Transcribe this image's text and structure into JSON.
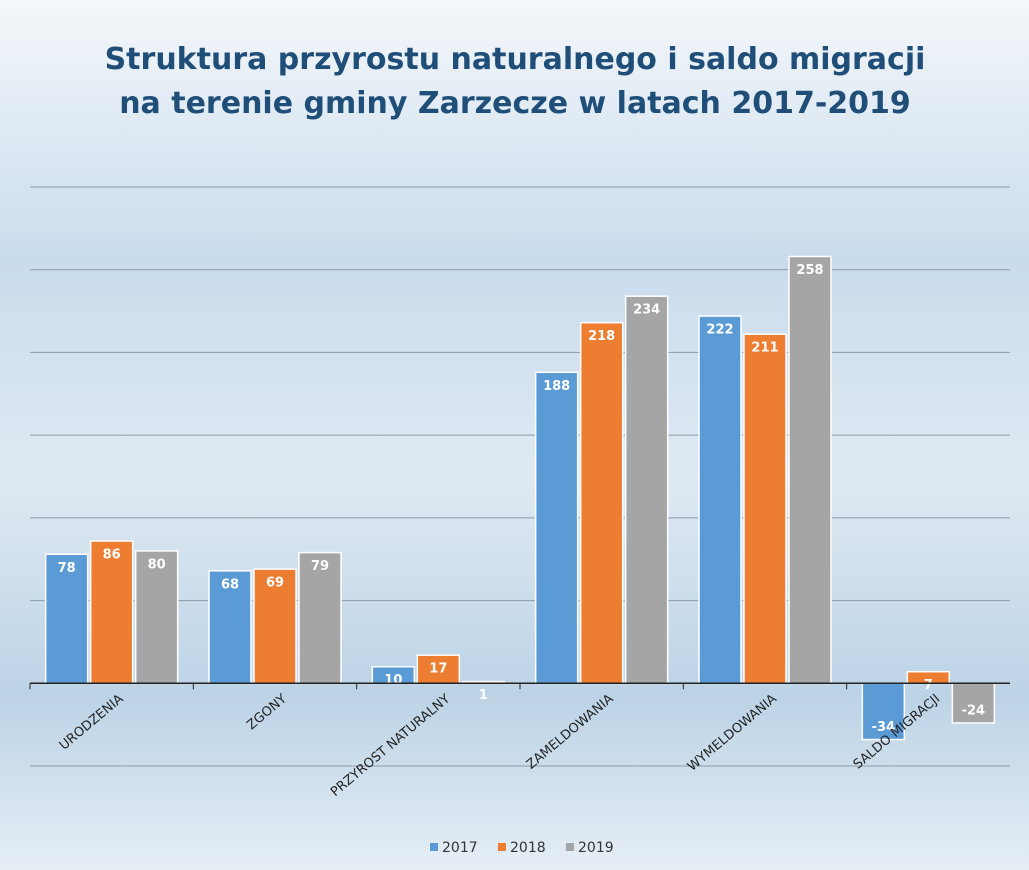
{
  "chart_data": {
    "type": "bar",
    "title": "Struktura przyrostu naturalnego i saldo migracji na terenie gminy Zarzecze w latach 2017-2019",
    "categories": [
      "URODZENIA",
      "ZGONY",
      "PRZYROST NATURALNY",
      "ZAMELDOWANIA",
      "WYMELDOWANIA",
      "SALDO MIGRACJI"
    ],
    "series": [
      {
        "name": "2017",
        "color": "#5b9bd5",
        "values": [
          78,
          68,
          10,
          188,
          222,
          -34
        ]
      },
      {
        "name": "2018",
        "color": "#ed7d31",
        "values": [
          86,
          69,
          17,
          218,
          211,
          7
        ]
      },
      {
        "name": "2019",
        "color": "#a5a5a5",
        "values": [
          80,
          79,
          1,
          234,
          258,
          -24
        ]
      }
    ],
    "ylim": [
      -50,
      300
    ],
    "yticks": [
      -50,
      0,
      50,
      100,
      150,
      200,
      250,
      300
    ],
    "grid": true
  }
}
